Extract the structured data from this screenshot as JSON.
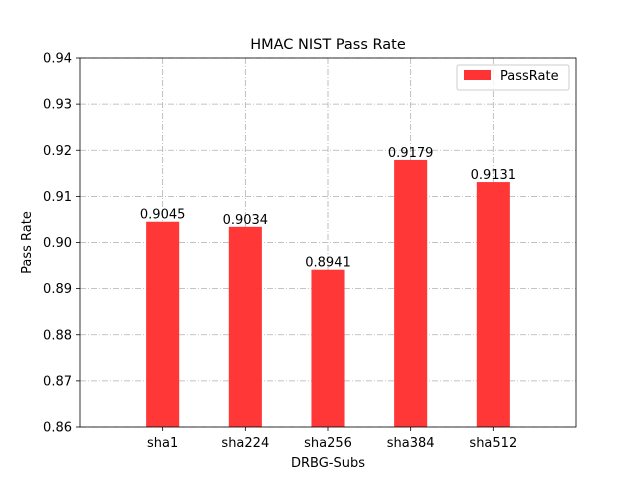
{
  "chart_data": {
    "type": "bar",
    "title": "HMAC NIST Pass Rate",
    "xlabel": "DRBG-Subs",
    "ylabel": "Pass Rate",
    "categories": [
      "sha1",
      "sha224",
      "sha256",
      "sha384",
      "sha512"
    ],
    "series": [
      {
        "name": "PassRate",
        "values": [
          0.9045,
          0.9034,
          0.8941,
          0.9179,
          0.9131
        ],
        "color": "#ff3333"
      }
    ],
    "data_labels": [
      "0.9045",
      "0.9034",
      "0.8941",
      "0.9179",
      "0.9131"
    ],
    "ylim": [
      0.86,
      0.94
    ],
    "yticks": [
      "0.86",
      "0.87",
      "0.88",
      "0.89",
      "0.90",
      "0.91",
      "0.92",
      "0.93",
      "0.94"
    ],
    "grid": true,
    "legend_position": "top-right"
  }
}
